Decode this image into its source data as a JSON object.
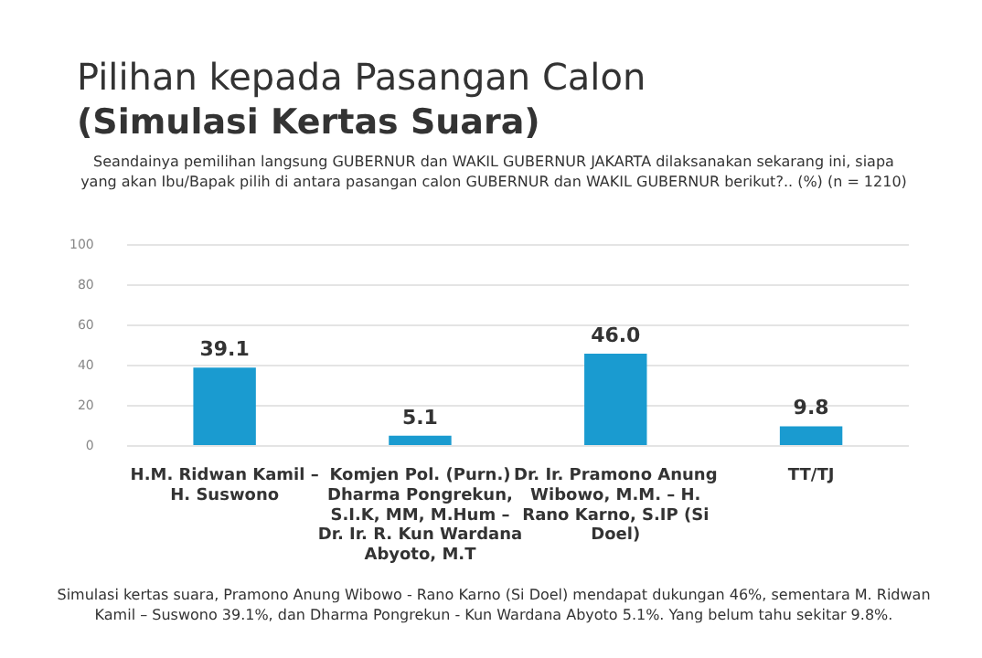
{
  "chart_data": {
    "type": "bar",
    "title": "Pilihan kepada Pasangan Calon",
    "subtitle": "(Simulasi Kertas Suara)",
    "annotations": [
      "Seandainya pemilihan langsung GUBERNUR dan WAKIL GUBERNUR JAKARTA dilaksanakan sekarang ini, siapa yang akan Ibu/Bapak pilih di antara pasangan calon GUBERNUR dan WAKIL GUBERNUR berikut?.. (%) (n = 1210)",
      "Simulasi kertas suara, Pramono Anung Wibowo - Rano Karno (Si Doel) mendapat dukungan 46%, sementara M. Ridwan Kamil – Suswono 39.1%, dan Dharma Pongrekun - Kun Wardana Abyoto 5.1%. Yang belum tahu sekitar 9.8%."
    ],
    "categories": [
      "H.M. Ridwan Kamil – H. Suswono",
      "Komjen Pol. (Purn.) Dharma Pongrekun, S.I.K, MM, M.Hum – Dr. Ir. R. Kun Wardana Abyoto, M.T",
      "Dr. Ir. Pramono Anung Wibowo, M.M. – H. Rano Karno, S.IP (Si Doel)",
      "TT/TJ"
    ],
    "values": [
      39.1,
      5.1,
      46.0,
      9.8
    ],
    "value_labels": [
      "39.1",
      "5.1",
      "46.0",
      "9.8"
    ],
    "color": "#1a9bd0",
    "ylim": [
      0,
      100
    ],
    "yticks": [
      0,
      20,
      40,
      60,
      80,
      100
    ],
    "grid": "y",
    "legend": false
  }
}
